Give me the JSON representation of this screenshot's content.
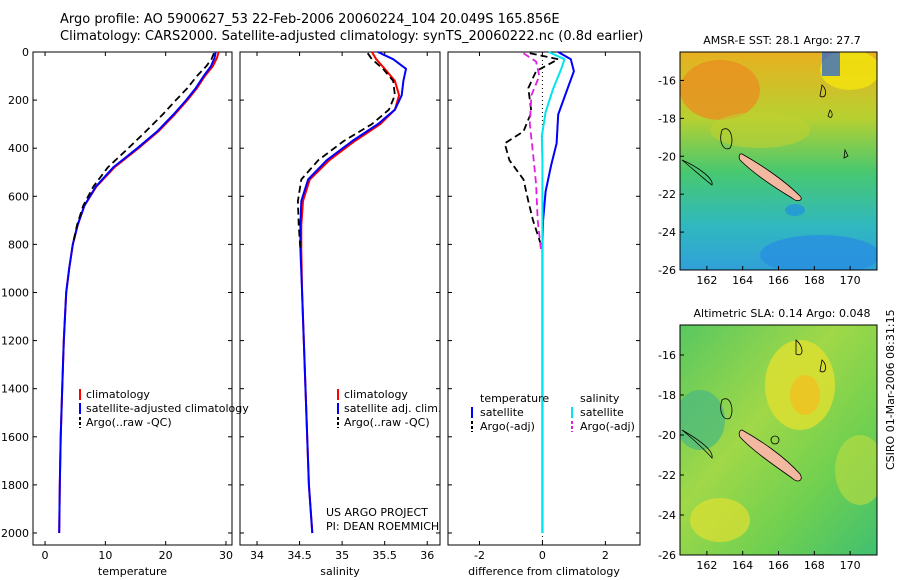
{
  "titles": {
    "line1": "Argo profile: AO 5900627_53 22-Feb-2006 20060224_104 20.049S 165.856E",
    "line2": "Climatology: CARS2000. Satellite-adjusted climatology: synTS_20060222.nc (0.8d earlier)"
  },
  "side_text": "CSIRO 01-Mar-2006 08:31:15",
  "project": {
    "line1": "US ARGO PROJECT",
    "line2": "PI: DEAN ROEMMICH"
  },
  "colors": {
    "climatology": "#ff0000",
    "satellite": "#0000ff",
    "argo": "#000000",
    "salinity_satellite": "#00e5ee",
    "salinity_argo": "#e020e0"
  },
  "chart_data": [
    {
      "type": "line",
      "xlabel": "temperature",
      "ylabel": "",
      "xlim": [
        -2,
        31
      ],
      "ylim": [
        2050,
        0
      ],
      "xticks": [
        "0",
        "10",
        "20",
        "30"
      ],
      "xtick_values": [
        0,
        10,
        20,
        30
      ],
      "yticks": [
        "0",
        "200",
        "400",
        "600",
        "800",
        "1000",
        "1200",
        "1400",
        "1600",
        "1800",
        "2000"
      ],
      "legend": [
        "climatology",
        "satellite-adjusted climatology",
        "Argo(..raw -QC)"
      ],
      "series": [
        {
          "name": "climatology",
          "x": [
            28.8,
            28.5,
            27.8,
            26.5,
            25.2,
            23.6,
            21.5,
            18.8,
            15.5,
            11.5,
            8.5,
            6.5,
            5.4,
            4.6,
            4.0,
            3.5,
            3.1,
            2.85,
            2.6,
            2.45,
            2.35
          ],
          "y": [
            0,
            25,
            60,
            100,
            150,
            200,
            260,
            330,
            400,
            480,
            560,
            640,
            720,
            800,
            900,
            1000,
            1200,
            1400,
            1600,
            1800,
            2000
          ]
        },
        {
          "name": "satellite-adjusted climatology",
          "x": [
            28.3,
            28.1,
            27.5,
            26.3,
            25.0,
            23.4,
            21.3,
            18.6,
            15.3,
            11.3,
            8.4,
            6.5,
            5.4,
            4.6,
            4.0,
            3.5,
            3.1,
            2.85,
            2.6,
            2.45,
            2.35
          ],
          "y": [
            0,
            25,
            60,
            100,
            150,
            200,
            260,
            330,
            400,
            480,
            560,
            640,
            720,
            800,
            900,
            1000,
            1200,
            1400,
            1600,
            1800,
            2000
          ]
        },
        {
          "name": "Argo(..raw -QC)",
          "x": [
            28.0,
            27.6,
            26.7,
            25.2,
            23.6,
            21.7,
            19.5,
            16.7,
            13.8,
            10.4,
            8.0,
            6.3,
            5.3,
            4.6
          ],
          "y": [
            5,
            30,
            60,
            100,
            150,
            200,
            260,
            330,
            400,
            480,
            560,
            640,
            720,
            800
          ]
        }
      ]
    },
    {
      "type": "line",
      "xlabel": "salinity",
      "ylabel": "",
      "xlim": [
        33.8,
        36.15
      ],
      "ylim": [
        2050,
        0
      ],
      "xticks": [
        "34",
        "34.5",
        "35",
        "35.5",
        "36"
      ],
      "xtick_values": [
        34,
        34.5,
        35,
        35.5,
        36
      ],
      "legend": [
        "climatology",
        "satellite adj. clim.",
        "Argo(..raw -QC)"
      ],
      "series": [
        {
          "name": "climatology",
          "x": [
            35.35,
            35.4,
            35.5,
            35.62,
            35.67,
            35.62,
            35.45,
            35.15,
            34.85,
            34.62,
            34.54,
            34.52,
            34.52,
            34.53,
            34.55,
            34.57,
            34.59,
            34.61,
            34.63,
            34.65
          ],
          "y": [
            0,
            30,
            70,
            120,
            180,
            240,
            300,
            370,
            450,
            530,
            620,
            720,
            820,
            1000,
            1200,
            1400,
            1600,
            1800,
            1900,
            2000
          ]
        },
        {
          "name": "satellite adj. clim.",
          "x": [
            35.42,
            35.6,
            35.75,
            35.72,
            35.7,
            35.62,
            35.42,
            35.12,
            34.82,
            34.6,
            34.52,
            34.51,
            34.51,
            34.53,
            34.55,
            34.57,
            34.59,
            34.61,
            34.63,
            34.65
          ],
          "y": [
            0,
            30,
            70,
            120,
            180,
            240,
            300,
            370,
            450,
            530,
            620,
            720,
            820,
            1000,
            1200,
            1400,
            1600,
            1800,
            1900,
            2000
          ]
        },
        {
          "name": "Argo(..raw -QC)",
          "x": [
            35.3,
            35.35,
            35.48,
            35.6,
            35.62,
            35.55,
            35.35,
            35.02,
            34.72,
            34.52,
            34.48,
            34.49,
            34.51
          ],
          "y": [
            5,
            30,
            70,
            120,
            180,
            240,
            300,
            370,
            450,
            530,
            620,
            720,
            820
          ]
        }
      ]
    },
    {
      "type": "line",
      "xlabel": "difference from climatology",
      "ylabel": "",
      "xlim": [
        -3,
        3.1
      ],
      "ylim": [
        2050,
        0
      ],
      "xticks": [
        "-2",
        "0",
        "2"
      ],
      "xtick_values": [
        -2,
        0,
        2
      ],
      "legend_groups": [
        {
          "title": "temperature",
          "entries": [
            "satellite",
            "Argo(-adj)"
          ]
        },
        {
          "title": "salinity",
          "entries": [
            "satellite",
            "Argo(-adj)"
          ]
        }
      ],
      "series": [
        {
          "name": "temperature satellite",
          "x": [
            0.5,
            0.9,
            1.0,
            0.75,
            0.5,
            0.45,
            0.28,
            0.1,
            0.02,
            0,
            0,
            0,
            0
          ],
          "y": [
            0,
            30,
            80,
            170,
            260,
            380,
            470,
            580,
            700,
            800,
            1000,
            1500,
            2000
          ]
        },
        {
          "name": "temperature Argo(-adj)",
          "x": [
            -0.4,
            0.5,
            -0.2,
            -0.45,
            -0.35,
            -0.6,
            -1.2,
            -1.05,
            -0.6,
            -0.45,
            -0.3,
            -0.1,
            0
          ],
          "y": [
            5,
            30,
            80,
            150,
            250,
            330,
            380,
            450,
            530,
            620,
            700,
            780,
            820
          ]
        },
        {
          "name": "salinity satellite",
          "x": [
            0.2,
            0.7,
            0.6,
            0.35,
            0.1,
            -0.02,
            0,
            0,
            0,
            0,
            0
          ],
          "y": [
            0,
            30,
            70,
            150,
            250,
            350,
            450,
            600,
            1000,
            1500,
            2000
          ]
        },
        {
          "name": "salinity Argo(-adj)",
          "x": [
            -0.6,
            -0.2,
            -0.1,
            -0.35,
            -0.4,
            -0.3,
            -0.2,
            -0.15,
            -0.05
          ],
          "y": [
            5,
            40,
            100,
            180,
            300,
            420,
            550,
            700,
            820
          ]
        }
      ]
    },
    {
      "type": "heatmap",
      "title": "AMSR-E SST: 28.1 Argo: 27.7",
      "xticks": [
        "162",
        "164",
        "166",
        "168",
        "170"
      ],
      "xtick_values": [
        162,
        164,
        166,
        168,
        170
      ],
      "yticks": [
        "-16",
        "-18",
        "-20",
        "-22",
        "-24",
        "-26"
      ],
      "ytick_values": [
        -16,
        -18,
        -20,
        -22,
        -24,
        -26
      ],
      "xlim": [
        160.5,
        171.5
      ],
      "ylim": [
        -26,
        -14.5
      ]
    },
    {
      "type": "heatmap",
      "title": "Altimetric SLA: 0.14 Argo: 0.048",
      "xticks": [
        "162",
        "164",
        "166",
        "168",
        "170"
      ],
      "xtick_values": [
        162,
        164,
        166,
        168,
        170
      ],
      "yticks": [
        "-16",
        "-18",
        "-20",
        "-22",
        "-24",
        "-26"
      ],
      "ytick_values": [
        -16,
        -18,
        -20,
        -22,
        -24,
        -26
      ],
      "xlim": [
        160.5,
        171.5
      ],
      "ylim": [
        -26,
        -14.5
      ]
    }
  ]
}
